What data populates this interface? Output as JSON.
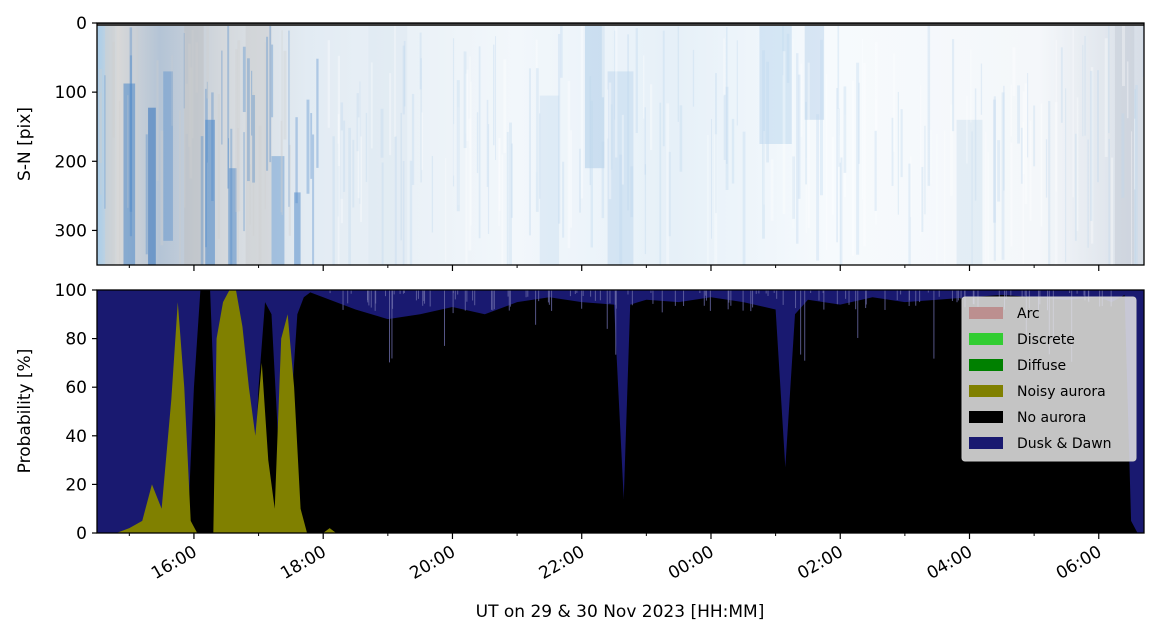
{
  "chart_data": [
    {
      "type": "heatmap",
      "title": "",
      "ylabel": "S-N [pix]",
      "xlabel": "",
      "yticks": [
        "0",
        "100",
        "200",
        "300"
      ],
      "ylim": [
        350,
        0
      ],
      "x_range": [
        "14:30",
        "06:30"
      ],
      "description_colors": {
        "dark": "#4a86c8",
        "mid": "#a9c9e6",
        "light": "#ffffff",
        "grey": "#c8c8c8"
      }
    },
    {
      "type": "area",
      "title": "",
      "ylabel": "Probability [%]",
      "xlabel": "UT on 29 & 30 Nov 2023 [HH:MM]",
      "xticks": [
        "16:00",
        "18:00",
        "20:00",
        "22:00",
        "00:00",
        "02:00",
        "04:00",
        "06:00"
      ],
      "yticks": [
        "0",
        "20",
        "40",
        "60",
        "80",
        "100"
      ],
      "ylim": [
        0,
        100
      ],
      "x_range_hours": [
        14.5,
        30.7
      ],
      "stacking_order": [
        "Noisy aurora",
        "No aurora",
        "Dusk & Dawn"
      ],
      "series": [
        {
          "name": "Noisy aurora",
          "color": "#808000",
          "points": [
            [
              14.5,
              0
            ],
            [
              14.8,
              0
            ],
            [
              15.0,
              2
            ],
            [
              15.2,
              5
            ],
            [
              15.35,
              20
            ],
            [
              15.5,
              10
            ],
            [
              15.65,
              55
            ],
            [
              15.75,
              95
            ],
            [
              15.85,
              60
            ],
            [
              15.95,
              5
            ],
            [
              16.05,
              0
            ],
            [
              16.3,
              0
            ],
            [
              16.35,
              80
            ],
            [
              16.45,
              95
            ],
            [
              16.55,
              100
            ],
            [
              16.65,
              100
            ],
            [
              16.75,
              85
            ],
            [
              16.85,
              60
            ],
            [
              16.95,
              40
            ],
            [
              17.05,
              70
            ],
            [
              17.15,
              30
            ],
            [
              17.25,
              10
            ],
            [
              17.35,
              80
            ],
            [
              17.45,
              90
            ],
            [
              17.55,
              60
            ],
            [
              17.65,
              10
            ],
            [
              17.75,
              0
            ],
            [
              18.0,
              0
            ],
            [
              18.1,
              2
            ],
            [
              18.2,
              0
            ],
            [
              30.7,
              0
            ]
          ]
        },
        {
          "name": "No aurora",
          "color": "#000000",
          "points": [
            [
              14.5,
              0
            ],
            [
              15.9,
              0
            ],
            [
              16.0,
              60
            ],
            [
              16.1,
              100
            ],
            [
              16.25,
              100
            ],
            [
              16.35,
              30
            ],
            [
              16.45,
              5
            ],
            [
              16.9,
              5
            ],
            [
              17.0,
              60
            ],
            [
              17.1,
              95
            ],
            [
              17.2,
              90
            ],
            [
              17.3,
              40
            ],
            [
              17.5,
              50
            ],
            [
              17.6,
              90
            ],
            [
              17.7,
              97
            ],
            [
              17.8,
              99
            ],
            [
              18.0,
              97
            ],
            [
              18.5,
              92
            ],
            [
              19.0,
              88
            ],
            [
              19.5,
              90
            ],
            [
              20.0,
              93
            ],
            [
              20.5,
              90
            ],
            [
              21.0,
              95
            ],
            [
              21.5,
              97
            ],
            [
              22.0,
              95
            ],
            [
              22.5,
              94
            ],
            [
              22.65,
              14
            ],
            [
              22.75,
              94
            ],
            [
              23.0,
              96
            ],
            [
              23.5,
              95
            ],
            [
              24.0,
              97
            ],
            [
              24.5,
              95
            ],
            [
              25.0,
              92
            ],
            [
              25.15,
              27
            ],
            [
              25.3,
              90
            ],
            [
              25.5,
              96
            ],
            [
              26.0,
              94
            ],
            [
              26.5,
              97
            ],
            [
              27.0,
              95
            ],
            [
              27.5,
              96
            ],
            [
              28.0,
              97
            ],
            [
              28.5,
              98
            ],
            [
              29.0,
              97
            ],
            [
              29.5,
              96
            ],
            [
              30.0,
              97
            ],
            [
              30.2,
              95
            ],
            [
              30.4,
              98
            ],
            [
              30.5,
              5
            ],
            [
              30.6,
              0
            ],
            [
              30.7,
              0
            ]
          ]
        },
        {
          "name": "Dusk & Dawn",
          "color": "#191970",
          "points": [
            [
              14.5,
              100
            ],
            [
              30.7,
              100
            ]
          ]
        }
      ],
      "legend": {
        "placement": "right",
        "entries": [
          {
            "name": "Arc",
            "color": "#bc8f8f"
          },
          {
            "name": "Discrete",
            "color": "#32cd32"
          },
          {
            "name": "Diffuse",
            "color": "#008000"
          },
          {
            "name": "Noisy aurora",
            "color": "#808000"
          },
          {
            "name": "No aurora",
            "color": "#000000"
          },
          {
            "name": "Dusk & Dawn",
            "color": "#191970"
          }
        ]
      }
    }
  ]
}
